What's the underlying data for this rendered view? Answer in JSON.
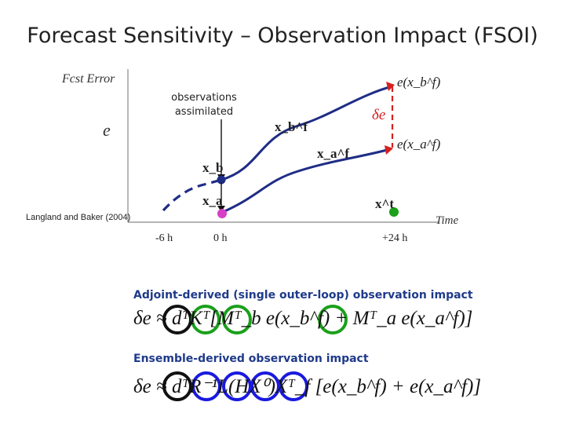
{
  "title": "Forecast Sensitivity – Observation Impact (FSOI)",
  "diagram": {
    "y_axis_label": "Fcst Error",
    "x_axis_label": "Time",
    "e_label": "e",
    "observations_note": "observations assimilated",
    "citation": "Langland and Baker (2004)",
    "ticks": [
      "-6 h",
      "0 h",
      "+24 h"
    ],
    "points": {
      "xb": "x_b",
      "xa": "x_a",
      "xt": "x^t"
    },
    "curve_labels": {
      "xbf": "x_b^f",
      "xaf": "x_a^f"
    },
    "error_labels": {
      "e_xbf": "e(x_b^f)",
      "e_xaf": "e(x_a^f)",
      "delta_e": "δe"
    },
    "colors": {
      "navy": "#1f2d86",
      "red": "#d62020",
      "green": "#1aa01a",
      "magenta": "#d63fc6",
      "blue": "#1a1adf",
      "black": "#111111"
    }
  },
  "adjoint": {
    "heading": "Adjoint-derived (single outer-loop) observation impact",
    "formula": "δe ≈ dᵀKᵀ[Mᵀ_b e(x_b^f) + Mᵀ_a e(x_a^f)]"
  },
  "ensemble": {
    "heading": "Ensemble-derived observation impact",
    "formula": "δe ≈ dᵀR⁻¹L(HX⁰)Xᵀ_f [e(x_b^f) + e(x_a^f)]"
  }
}
